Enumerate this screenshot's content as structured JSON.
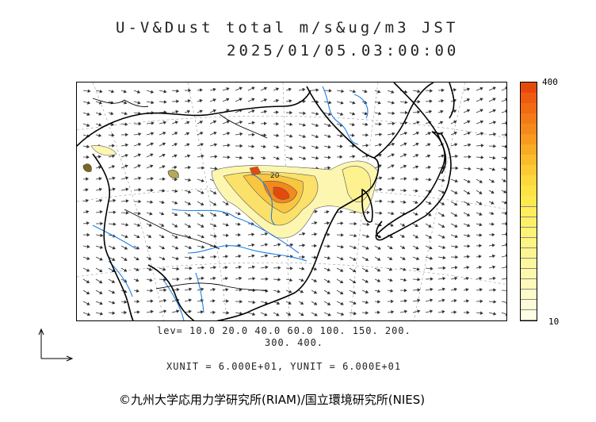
{
  "title_line1": "U-V&Dust total m/s&ug/m3 JST",
  "title_line2": "2025/01/05.03:00:00",
  "colorbar": {
    "max_label": "400",
    "min_label": "10",
    "colors": [
      "#e64a0a",
      "#ef5c10",
      "#f26a14",
      "#f47a18",
      "#f5891c",
      "#f79a20",
      "#f9ab26",
      "#fbbc2c",
      "#fccb34",
      "#fdd83c",
      "#fde244",
      "#fde94e",
      "#fdee5a",
      "#fdf066",
      "#fdf274",
      "#fdf482",
      "#fdf690",
      "#fdf79e",
      "#fdf8ac",
      "#fdf9ba",
      "#fefbc9",
      "#fefcd8",
      "#fefde6"
    ]
  },
  "contour_label": "20",
  "levels_line1": "lev= 10.0 20.0 40.0 60.0 100. 150. 200.",
  "levels_line2": "300. 400.",
  "units_line": "XUNIT = 6.000E+01, YUNIT = 6.000E+01",
  "copyright": "©九州大学応用力学研究所(RIAM)/国立環境研究所(NIES)"
}
